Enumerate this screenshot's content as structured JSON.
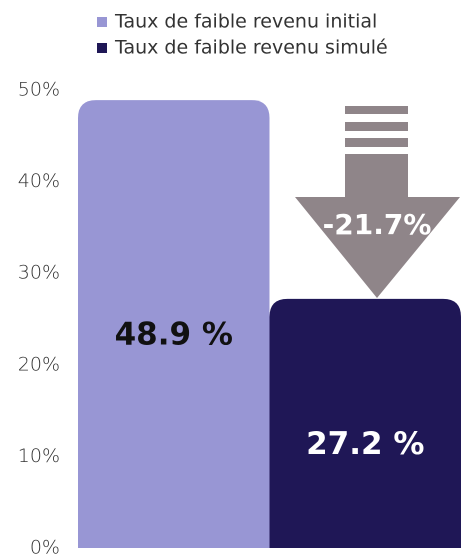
{
  "chart_data": {
    "type": "bar",
    "categories": [
      null
    ],
    "series": [
      {
        "name": "Taux de faible revenu initial",
        "color": "#9896d4",
        "values": [
          48.9
        ],
        "value_labels": [
          "48.9 %"
        ]
      },
      {
        "name": "Taux de faible revenu simulé",
        "color": "#1f1756",
        "values": [
          27.2
        ],
        "value_labels": [
          "27.2 %"
        ]
      }
    ],
    "annotation": "-21.7%",
    "ylim": [
      0,
      50
    ],
    "yticks": [
      {
        "value": 0,
        "label": "0%"
      },
      {
        "value": 10,
        "label": "10%"
      },
      {
        "value": 20,
        "label": "20%"
      },
      {
        "value": 30,
        "label": "30%"
      },
      {
        "value": 40,
        "label": "40%"
      },
      {
        "value": 50,
        "label": "50%"
      }
    ],
    "grid": false
  }
}
